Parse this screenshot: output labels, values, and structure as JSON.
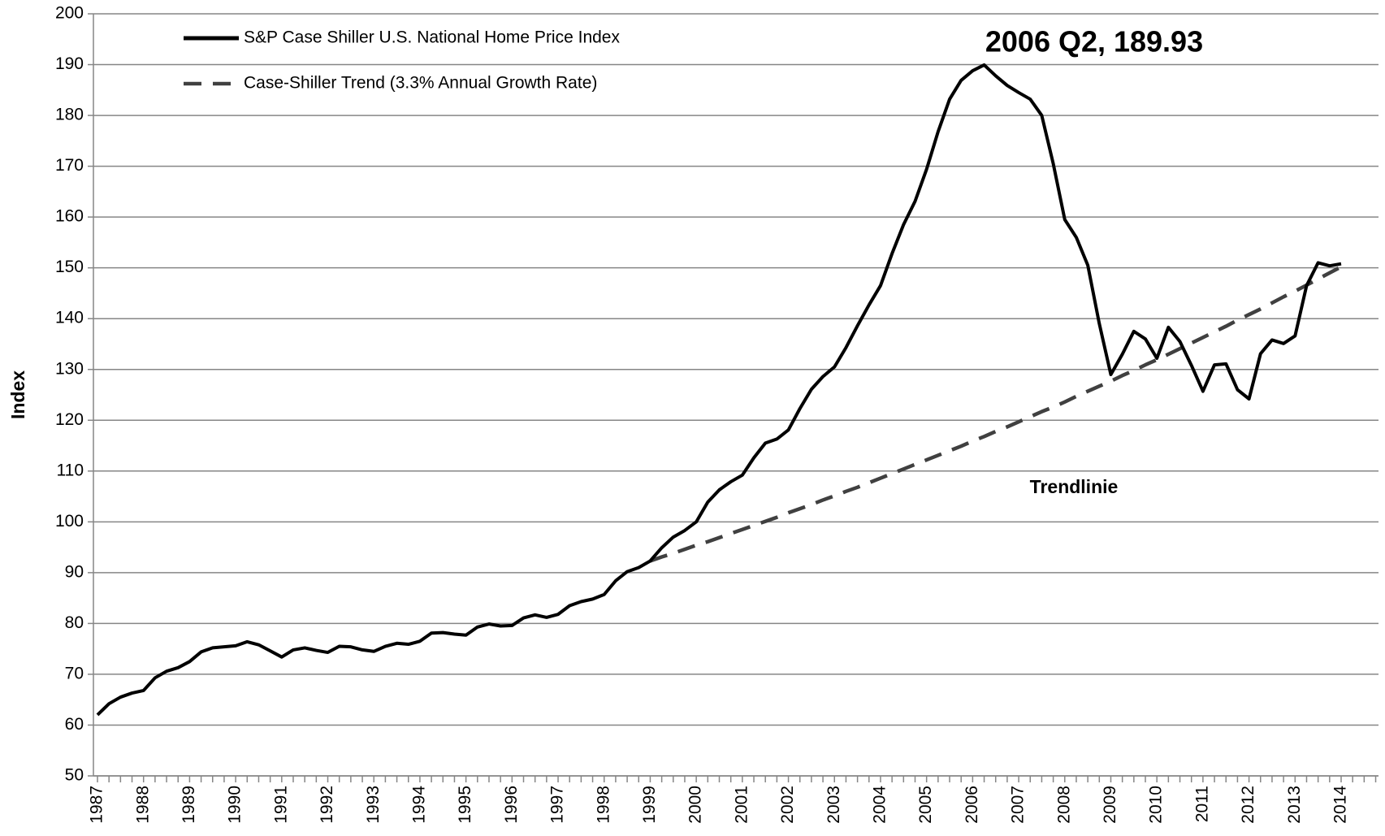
{
  "chart_data": {
    "type": "line",
    "y_label": "Index",
    "categories": [
      "1987",
      null,
      null,
      null,
      "1988",
      null,
      null,
      null,
      "1989",
      null,
      null,
      null,
      "1990",
      null,
      null,
      null,
      "1991",
      null,
      null,
      null,
      "1992",
      null,
      null,
      null,
      "1993",
      null,
      null,
      null,
      "1994",
      null,
      null,
      null,
      "1995",
      null,
      null,
      null,
      "1996",
      null,
      null,
      null,
      "1997",
      null,
      null,
      null,
      "1998",
      null,
      null,
      null,
      "1999",
      null,
      null,
      null,
      "2000",
      null,
      null,
      null,
      "2001",
      null,
      null,
      null,
      "2002",
      null,
      null,
      null,
      "2003",
      null,
      null,
      null,
      "2004",
      null,
      null,
      null,
      "2005",
      null,
      null,
      null,
      "2006",
      null,
      null,
      null,
      "2007",
      null,
      null,
      null,
      "2008",
      null,
      null,
      null,
      "2009",
      null,
      null,
      null,
      "2010",
      null,
      null,
      null,
      "2011",
      null,
      null,
      null,
      "2012",
      null,
      null,
      null,
      "2013",
      null,
      null,
      null,
      "2014"
    ],
    "series": [
      {
        "name": "S&P Case Shiller U.S. National Home Price Index",
        "color": "#000000",
        "dashed": false,
        "values": [
          62.0,
          64.2,
          65.5,
          66.3,
          66.8,
          69.3,
          70.6,
          71.3,
          72.5,
          74.4,
          75.2,
          75.4,
          75.6,
          76.4,
          75.8,
          74.6,
          73.4,
          74.8,
          75.2,
          74.7,
          74.3,
          75.5,
          75.4,
          74.8,
          74.5,
          75.5,
          76.1,
          75.9,
          76.5,
          78.1,
          78.2,
          77.9,
          77.7,
          79.3,
          79.9,
          79.5,
          79.6,
          81.1,
          81.7,
          81.2,
          81.8,
          83.5,
          84.3,
          84.8,
          85.7,
          88.4,
          90.2,
          91.0,
          92.3,
          94.9,
          97.0,
          98.3,
          100.0,
          103.9,
          106.3,
          107.9,
          109.2,
          112.6,
          115.5,
          116.3,
          118.1,
          122.3,
          126.1,
          128.6,
          130.5,
          134.3,
          138.6,
          142.7,
          146.5,
          152.8,
          158.5,
          163.1,
          169.4,
          176.8,
          183.2,
          186.9,
          188.8,
          189.93,
          187.8,
          185.9,
          184.5,
          183.2,
          180.0,
          170.5,
          159.5,
          156.0,
          150.5,
          139.0,
          129.0,
          133.0,
          137.5,
          136.0,
          132.2,
          138.3,
          135.5,
          130.8,
          125.7,
          130.9,
          131.1,
          126.0,
          124.2,
          133.1,
          135.8,
          135.1,
          136.6,
          146.5,
          151.0,
          150.4,
          150.8
        ]
      },
      {
        "name": "Case-Shiller Trend (3.3% Annual Growth Rate)",
        "color": "#404040",
        "dashed": true,
        "values": [
          null,
          null,
          null,
          null,
          null,
          null,
          null,
          null,
          null,
          null,
          null,
          null,
          null,
          null,
          null,
          null,
          null,
          null,
          null,
          null,
          null,
          null,
          null,
          null,
          null,
          null,
          null,
          null,
          null,
          null,
          null,
          null,
          null,
          null,
          null,
          null,
          null,
          null,
          null,
          null,
          null,
          null,
          null,
          null,
          null,
          null,
          null,
          null,
          92.3,
          93.1,
          93.8,
          94.6,
          95.4,
          96.1,
          96.9,
          97.7,
          98.5,
          99.3,
          100.1,
          100.9,
          101.8,
          102.6,
          103.4,
          104.3,
          105.1,
          106.0,
          106.8,
          107.7,
          108.6,
          109.5,
          110.4,
          111.3,
          112.2,
          113.1,
          114.0,
          114.9,
          115.9,
          116.8,
          117.8,
          118.7,
          119.7,
          120.7,
          121.7,
          122.6,
          123.6,
          124.7,
          125.7,
          126.7,
          127.7,
          128.8,
          129.8,
          130.9,
          131.9,
          133.0,
          134.1,
          135.2,
          136.3,
          137.4,
          138.5,
          139.7,
          140.8,
          141.9,
          143.1,
          144.3,
          145.4,
          146.6,
          147.8,
          149.0,
          150.2
        ]
      }
    ],
    "annotations": [
      "2006 Q2, 189.93",
      "Trendlinie"
    ],
    "ylim": [
      50,
      200
    ],
    "yticks": [
      50,
      60,
      70,
      80,
      90,
      100,
      110,
      120,
      130,
      140,
      150,
      160,
      170,
      180,
      190,
      200
    ],
    "grid": true,
    "legend": "upper left"
  }
}
